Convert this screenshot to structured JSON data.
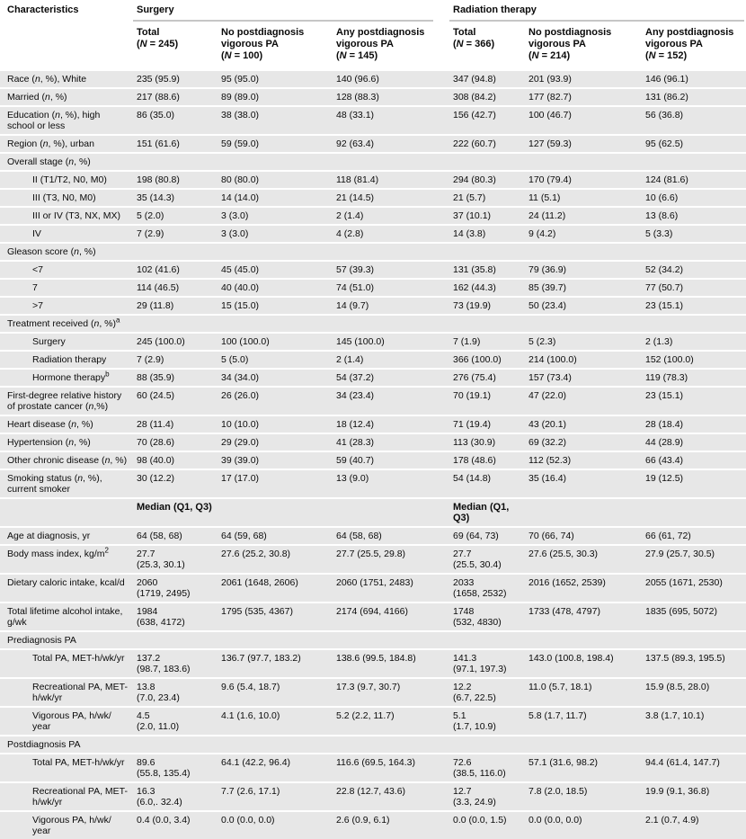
{
  "header": {
    "characteristics": "Characteristics",
    "groups": [
      {
        "label": "Surgery",
        "columns": [
          {
            "title": "Total",
            "n_html": "(<i>N</i> = 245)"
          },
          {
            "title": "No postdiagnosis vigorous PA",
            "n_html": "(<i>N</i> = 100)"
          },
          {
            "title": "Any postdiagnosis vigorous PA",
            "n_html": "(<i>N</i> = 145)"
          }
        ]
      },
      {
        "label": "Radiation therapy",
        "columns": [
          {
            "title": "Total",
            "n_html": "(<i>N</i> = 366)"
          },
          {
            "title": "No postdiagnosis vigorous PA",
            "n_html": "(<i>N</i> = 214)"
          },
          {
            "title": "Any postdiagnosis vigorous PA",
            "n_html": "(<i>N</i> = 152)"
          }
        ]
      }
    ]
  },
  "rows": [
    {
      "type": "data",
      "indent": 0,
      "label": "Race (<i>n</i>, %), White",
      "cells": [
        "235 (95.9)",
        "95 (95.0)",
        "140 (96.6)",
        "347 (94.8)",
        "201 (93.9)",
        "146 (96.1)"
      ]
    },
    {
      "type": "data",
      "indent": 0,
      "label": "Married (<i>n</i>, %)",
      "cells": [
        "217 (88.6)",
        "89 (89.0)",
        "128 (88.3)",
        "308 (84.2)",
        "177 (82.7)",
        "131 (86.2)"
      ]
    },
    {
      "type": "data",
      "indent": 0,
      "label": "Education (<i>n</i>, %), high school or less",
      "cells": [
        "86 (35.0)",
        "38 (38.0)",
        "48 (33.1)",
        "156 (42.7)",
        "100 (46.7)",
        "56 (36.8)"
      ]
    },
    {
      "type": "data",
      "indent": 0,
      "label": "Region (<i>n</i>, %), urban",
      "cells": [
        "151 (61.6)",
        "59 (59.0)",
        "92 (63.4)",
        "222 (60.7)",
        "127 (59.3)",
        "95 (62.5)"
      ]
    },
    {
      "type": "section",
      "indent": 0,
      "label": "Overall stage (<i>n</i>, %)"
    },
    {
      "type": "data",
      "indent": 1,
      "label": "II (T1/T2, N0, M0)",
      "cells": [
        "198 (80.8)",
        "80 (80.0)",
        "118 (81.4)",
        "294 (80.3)",
        "170 (79.4)",
        "124 (81.6)"
      ]
    },
    {
      "type": "data",
      "indent": 1,
      "label": "III (T3, N0, M0)",
      "cells": [
        "35 (14.3)",
        "14 (14.0)",
        "21 (14.5)",
        "21 (5.7)",
        "11 (5.1)",
        "10 (6.6)"
      ]
    },
    {
      "type": "data",
      "indent": 1,
      "label": "III or IV (T3, NX, MX)",
      "cells": [
        "5 (2.0)",
        "3 (3.0)",
        "2 (1.4)",
        "37 (10.1)",
        "24 (11.2)",
        "13 (8.6)"
      ]
    },
    {
      "type": "data",
      "indent": 1,
      "label": "IV",
      "cells": [
        "7 (2.9)",
        "3 (3.0)",
        "4 (2.8)",
        "14 (3.8)",
        "9 (4.2)",
        "5 (3.3)"
      ]
    },
    {
      "type": "section",
      "indent": 0,
      "label": "Gleason score (<i>n</i>, %)"
    },
    {
      "type": "data",
      "indent": 1,
      "label": "&lt;7",
      "cells": [
        "102 (41.6)",
        "45 (45.0)",
        "57 (39.3)",
        "131 (35.8)",
        "79 (36.9)",
        "52 (34.2)"
      ]
    },
    {
      "type": "data",
      "indent": 1,
      "label": "7",
      "cells": [
        "114 (46.5)",
        "40 (40.0)",
        "74 (51.0)",
        "162 (44.3)",
        "85 (39.7)",
        "77 (50.7)"
      ]
    },
    {
      "type": "data",
      "indent": 1,
      "label": "&gt;7",
      "cells": [
        "29 (11.8)",
        "15 (15.0)",
        "14 (9.7)",
        "73 (19.9)",
        "50 (23.4)",
        "23 (15.1)"
      ]
    },
    {
      "type": "section",
      "indent": 0,
      "label": "Treatment received (<i>n</i>, %)<sup>a</sup>"
    },
    {
      "type": "data",
      "indent": 1,
      "label": "Surgery",
      "cells": [
        "245 (100.0)",
        "100 (100.0)",
        "145 (100.0)",
        "7 (1.9)",
        "5 (2.3)",
        "2 (1.3)"
      ]
    },
    {
      "type": "data",
      "indent": 1,
      "label": "Radiation therapy",
      "cells": [
        "7 (2.9)",
        "5 (5.0)",
        "2 (1.4)",
        "366 (100.0)",
        "214 (100.0)",
        "152 (100.0)"
      ]
    },
    {
      "type": "data",
      "indent": 1,
      "label": "Hormone therapy<sup>b</sup>",
      "cells": [
        "88 (35.9)",
        "34 (34.0)",
        "54 (37.2)",
        "276 (75.4)",
        "157 (73.4)",
        "119 (78.3)"
      ]
    },
    {
      "type": "data",
      "indent": 0,
      "label": "First-degree relative history of prostate cancer (<i>n</i>,%)",
      "cells": [
        "60 (24.5)",
        "26 (26.0)",
        "34 (23.4)",
        "70 (19.1)",
        "47 (22.0)",
        "23 (15.1)"
      ]
    },
    {
      "type": "data",
      "indent": 0,
      "label": "Heart disease (<i>n</i>, %)",
      "cells": [
        "28 (11.4)",
        "10 (10.0)",
        "18 (12.4)",
        "71 (19.4)",
        "43 (20.1)",
        "28 (18.4)"
      ]
    },
    {
      "type": "data",
      "indent": 0,
      "label": "Hypertension (<i>n</i>, %)",
      "cells": [
        "70 (28.6)",
        "29 (29.0)",
        "41 (28.3)",
        "113 (30.9)",
        "69 (32.2)",
        "44 (28.9)"
      ]
    },
    {
      "type": "data",
      "indent": 0,
      "label": "Other chronic disease (<i>n</i>, %)",
      "cells": [
        "98 (40.0)",
        "39 (39.0)",
        "59 (40.7)",
        "178 (48.6)",
        "112 (52.3)",
        "66 (43.4)"
      ]
    },
    {
      "type": "data",
      "indent": 0,
      "label": "Smoking status (<i>n</i>, %), current smoker",
      "cells": [
        "30 (12.2)",
        "17 (17.0)",
        "13 (9.0)",
        "54 (14.8)",
        "35 (16.4)",
        "19 (12.5)"
      ]
    },
    {
      "type": "median",
      "indent": 0,
      "label": "",
      "cells": [
        "Median (Q1, Q3)",
        "",
        "",
        "Median (Q1, Q3)",
        "",
        ""
      ]
    },
    {
      "type": "data",
      "indent": 0,
      "label": "Age at diagnosis, yr",
      "cells": [
        "64 (58, 68)",
        "64 (59, 68)",
        "64 (58, 68)",
        "69 (64, 73)",
        "70 (66, 74)",
        "66 (61, 72)"
      ]
    },
    {
      "type": "data",
      "indent": 0,
      "label": "Body mass index, kg/m<sup>2</sup>",
      "cells": [
        "27.7\n(25.3, 30.1)",
        "27.6 (25.2, 30.8)",
        "27.7 (25.5, 29.8)",
        "27.7\n(25.5, 30.4)",
        "27.6 (25.5, 30.3)",
        "27.9 (25.7, 30.5)"
      ]
    },
    {
      "type": "data",
      "indent": 0,
      "label": "Dietary caloric intake, kcal/d",
      "cells": [
        "2060\n(1719, 2495)",
        "2061 (1648, 2606)",
        "2060 (1751, 2483)",
        "2033\n(1658, 2532)",
        "2016 (1652, 2539)",
        "2055 (1671, 2530)"
      ]
    },
    {
      "type": "data",
      "indent": 0,
      "label": "Total lifetime alcohol intake, g/wk",
      "cells": [
        "1984\n(638, 4172)",
        "1795 (535, 4367)",
        "2174 (694, 4166)",
        "1748\n(532, 4830)",
        "1733 (478, 4797)",
        "1835 (695, 5072)"
      ]
    },
    {
      "type": "section",
      "indent": 0,
      "label": "Prediagnosis PA"
    },
    {
      "type": "data",
      "indent": 1,
      "label": "Total PA, MET-h/wk/yr",
      "cells": [
        "137.2\n(98.7, 183.6)",
        "136.7 (97.7, 183.2)",
        "138.6 (99.5, 184.8)",
        "141.3\n(97.1, 197.3)",
        "143.0 (100.8, 198.4)",
        "137.5 (89.3, 195.5)"
      ]
    },
    {
      "type": "data",
      "indent": 1,
      "label": "Recreational PA, MET-h/wk/yr",
      "cells": [
        "13.8\n(7.0, 23.4)",
        "9.6 (5.4, 18.7)",
        "17.3 (9.7, 30.7)",
        "12.2\n(6.7, 22.5)",
        "11.0 (5.7, 18.1)",
        "15.9 (8.5, 28.0)"
      ]
    },
    {
      "type": "data",
      "indent": 1,
      "label": "Vigorous PA, h/wk/ year",
      "cells": [
        "4.5\n(2.0, 11.0)",
        "4.1 (1.6, 10.0)",
        "5.2 (2.2, 11.7)",
        "5.1\n(1.7, 10.9)",
        "5.8 (1.7, 11.7)",
        "3.8 (1.7, 10.1)"
      ]
    },
    {
      "type": "section",
      "indent": 0,
      "label": "Postdiagnosis PA"
    },
    {
      "type": "data",
      "indent": 1,
      "label": "Total PA, MET-h/wk/yr",
      "cells": [
        "89.6\n(55.8, 135.4)",
        "64.1 (42.2, 96.4)",
        "116.6 (69.5, 164.3)",
        "72.6\n(38.5, 116.0)",
        "57.1 (31.6, 98.2)",
        "94.4 (61.4, 147.7)"
      ]
    },
    {
      "type": "data",
      "indent": 1,
      "label": "Recreational PA, MET-h/wk/yr",
      "cells": [
        "16.3\n(6.0,. 32.4)",
        "7.7 (2.6, 17.1)",
        "22.8 (12.7, 43.6)",
        "12.7\n(3.3, 24.9)",
        "7.8 (2.0, 18.5)",
        "19.9 (9.1, 36.8)"
      ]
    },
    {
      "type": "data",
      "indent": 1,
      "label": "Vigorous PA, h/wk/ year",
      "cells": [
        "0.4 (0.0, 3.4)",
        "0.0 (0.0, 0.0)",
        "2.6 (0.9, 6.1)",
        "0.0 (0.0, 1.5)",
        "0.0 (0.0, 0.0)",
        "2.1 (0.7, 4.9)"
      ]
    }
  ]
}
